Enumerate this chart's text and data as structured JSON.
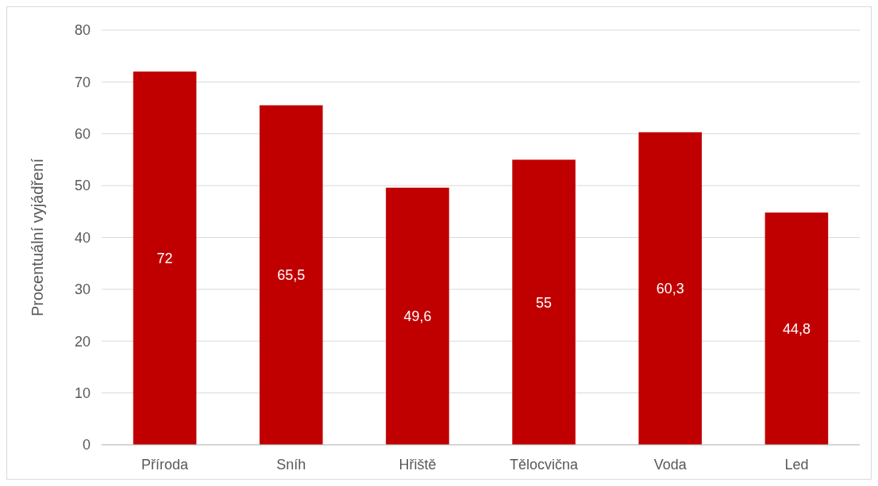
{
  "chart_data": {
    "type": "bar",
    "ylabel": "Procentuální vyjádření",
    "categories": [
      "Příroda",
      "Sníh",
      "Hřiště",
      "Tělocvična",
      "Voda",
      "Led"
    ],
    "values": [
      72,
      65.5,
      49.6,
      55,
      60.3,
      44.8
    ],
    "value_labels": [
      "72",
      "65,5",
      "49,6",
      "55",
      "60,3",
      "44,8"
    ],
    "color": "#c00000",
    "ylim": [
      0,
      80
    ],
    "yticks": [
      0,
      10,
      20,
      30,
      40,
      50,
      60,
      70,
      80
    ],
    "grid": "y"
  }
}
